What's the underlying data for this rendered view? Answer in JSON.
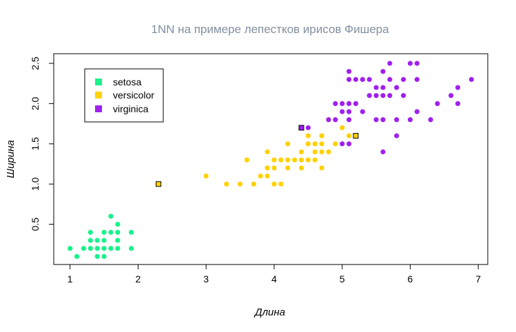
{
  "chart_data": {
    "type": "scatter",
    "title": "1NN на примере лепестков ирисов Фишера",
    "xlabel": "Длина",
    "ylabel": "Ширина",
    "xlim": [
      0.76,
      7.14
    ],
    "ylim": [
      0.0,
      2.62
    ],
    "xticks": [
      "1",
      "2",
      "3",
      "4",
      "5",
      "6",
      "7"
    ],
    "yticks": [
      "0.5",
      "1.0",
      "1.5",
      "2.0",
      "2.5"
    ],
    "grid": false,
    "legend_position": "top-left",
    "series": [
      {
        "name": "setosa",
        "color": "#19f28c",
        "points": [
          [
            1.0,
            0.2
          ],
          [
            1.1,
            0.1
          ],
          [
            1.2,
            0.2
          ],
          [
            1.3,
            0.2
          ],
          [
            1.3,
            0.3
          ],
          [
            1.3,
            0.4
          ],
          [
            1.4,
            0.1
          ],
          [
            1.4,
            0.2
          ],
          [
            1.4,
            0.3
          ],
          [
            1.5,
            0.1
          ],
          [
            1.5,
            0.2
          ],
          [
            1.5,
            0.3
          ],
          [
            1.5,
            0.4
          ],
          [
            1.6,
            0.2
          ],
          [
            1.6,
            0.4
          ],
          [
            1.6,
            0.6
          ],
          [
            1.7,
            0.2
          ],
          [
            1.7,
            0.3
          ],
          [
            1.7,
            0.4
          ],
          [
            1.7,
            0.5
          ],
          [
            1.9,
            0.2
          ],
          [
            1.9,
            0.4
          ]
        ]
      },
      {
        "name": "versicolor",
        "color": "#ffd100",
        "points": [
          [
            3.0,
            1.1
          ],
          [
            3.3,
            1.0
          ],
          [
            3.5,
            1.0
          ],
          [
            3.6,
            1.3
          ],
          [
            3.7,
            1.0
          ],
          [
            3.8,
            1.1
          ],
          [
            3.9,
            1.1
          ],
          [
            3.9,
            1.2
          ],
          [
            3.9,
            1.4
          ],
          [
            4.0,
            1.0
          ],
          [
            4.0,
            1.2
          ],
          [
            4.0,
            1.3
          ],
          [
            4.1,
            1.0
          ],
          [
            4.1,
            1.3
          ],
          [
            4.2,
            1.2
          ],
          [
            4.2,
            1.3
          ],
          [
            4.2,
            1.5
          ],
          [
            4.3,
            1.3
          ],
          [
            4.4,
            1.2
          ],
          [
            4.4,
            1.3
          ],
          [
            4.4,
            1.4
          ],
          [
            4.5,
            1.3
          ],
          [
            4.5,
            1.5
          ],
          [
            4.5,
            1.6
          ],
          [
            4.6,
            1.3
          ],
          [
            4.6,
            1.4
          ],
          [
            4.6,
            1.5
          ],
          [
            4.7,
            1.2
          ],
          [
            4.7,
            1.4
          ],
          [
            4.7,
            1.5
          ],
          [
            4.7,
            1.6
          ],
          [
            4.8,
            1.4
          ],
          [
            4.8,
            1.8
          ],
          [
            4.9,
            1.5
          ],
          [
            5.0,
            1.7
          ],
          [
            5.1,
            1.6
          ]
        ]
      },
      {
        "name": "virginica",
        "color": "#a020f0",
        "points": [
          [
            4.5,
            1.7
          ],
          [
            4.8,
            1.8
          ],
          [
            4.9,
            1.8
          ],
          [
            4.9,
            2.0
          ],
          [
            5.0,
            1.5
          ],
          [
            5.0,
            1.9
          ],
          [
            5.0,
            2.0
          ],
          [
            5.1,
            1.5
          ],
          [
            5.1,
            1.8
          ],
          [
            5.1,
            1.9
          ],
          [
            5.1,
            2.0
          ],
          [
            5.1,
            2.3
          ],
          [
            5.1,
            2.4
          ],
          [
            5.2,
            2.0
          ],
          [
            5.2,
            2.3
          ],
          [
            5.3,
            1.9
          ],
          [
            5.3,
            2.3
          ],
          [
            5.4,
            2.1
          ],
          [
            5.4,
            2.3
          ],
          [
            5.5,
            1.8
          ],
          [
            5.5,
            2.1
          ],
          [
            5.5,
            2.2
          ],
          [
            5.6,
            1.4
          ],
          [
            5.6,
            1.8
          ],
          [
            5.6,
            2.1
          ],
          [
            5.6,
            2.2
          ],
          [
            5.6,
            2.4
          ],
          [
            5.7,
            2.1
          ],
          [
            5.7,
            2.3
          ],
          [
            5.7,
            2.5
          ],
          [
            5.8,
            1.6
          ],
          [
            5.8,
            1.8
          ],
          [
            5.8,
            2.2
          ],
          [
            5.9,
            2.1
          ],
          [
            5.9,
            2.3
          ],
          [
            6.0,
            1.8
          ],
          [
            6.0,
            2.5
          ],
          [
            6.1,
            1.9
          ],
          [
            6.1,
            2.3
          ],
          [
            6.1,
            2.5
          ],
          [
            6.3,
            1.8
          ],
          [
            6.4,
            2.0
          ],
          [
            6.6,
            2.1
          ],
          [
            6.7,
            2.0
          ],
          [
            6.7,
            2.2
          ],
          [
            6.9,
            2.3
          ]
        ]
      }
    ],
    "highlighted_points": [
      {
        "x": 2.3,
        "y": 1.0,
        "class": "versicolor",
        "color": "#ffd100"
      },
      {
        "x": 4.4,
        "y": 1.7,
        "class": "virginica",
        "color": "#a020f0"
      },
      {
        "x": 5.2,
        "y": 1.6,
        "class": "versicolor",
        "color": "#ffd100"
      }
    ]
  }
}
